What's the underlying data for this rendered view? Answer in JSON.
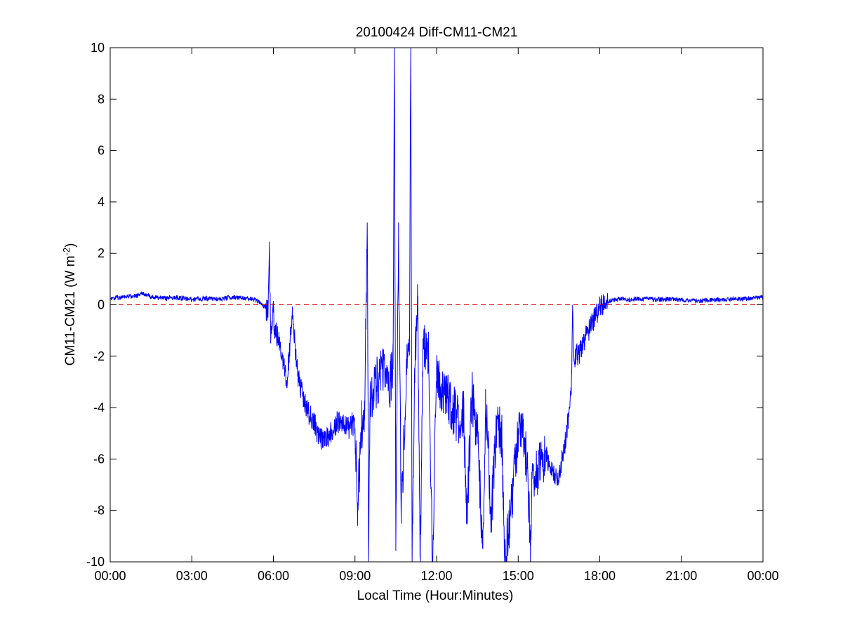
{
  "chart_data": {
    "type": "line",
    "title": "20100424 Diff-CM11-CM21",
    "xlabel": "Local Time (Hour:Minutes)",
    "ylabel_main": "CM11-CM21 (W m",
    "ylabel_sup": "-2",
    "ylabel_close": ")",
    "xlim": [
      0,
      24
    ],
    "ylim": [
      -10,
      10
    ],
    "x_ticks": [
      0,
      3,
      6,
      9,
      12,
      15,
      18,
      21,
      24
    ],
    "x_tick_labels": [
      "00:00",
      "03:00",
      "06:00",
      "09:00",
      "12:00",
      "15:00",
      "18:00",
      "21:00",
      "00:00"
    ],
    "y_ticks": [
      -10,
      -8,
      -6,
      -4,
      -2,
      0,
      2,
      4,
      6,
      8,
      10
    ],
    "y_tick_labels": [
      "-10",
      "-8",
      "-6",
      "-4",
      "-2",
      "0",
      "2",
      "4",
      "6",
      "8",
      "10"
    ],
    "grid": false,
    "reference_line": {
      "y": 0,
      "style": "dashed",
      "color": "#cc0000"
    },
    "series": [
      {
        "color": "#0000ff",
        "x": [
          0,
          0.5,
          1,
          1.2,
          1.5,
          2,
          2.5,
          3,
          3.5,
          4,
          4.5,
          5,
          5.3,
          5.5,
          5.7,
          5.8,
          5.85,
          5.9,
          5.95,
          6.0,
          6.05,
          6.1,
          6.2,
          6.3,
          6.5,
          6.55,
          6.7,
          6.9,
          7.0,
          7.2,
          7.5,
          7.6,
          7.8,
          8.0,
          8.3,
          8.5,
          8.8,
          8.9,
          9.0,
          9.1,
          9.25,
          9.35,
          9.45,
          9.5,
          9.55,
          9.7,
          9.9,
          10.0,
          10.2,
          10.3,
          10.4,
          10.45,
          10.5,
          10.55,
          10.6,
          10.7,
          10.9,
          11.0,
          11.05,
          11.1,
          11.2,
          11.3,
          11.4,
          11.5,
          11.7,
          11.85,
          12.0,
          12.2,
          12.5,
          12.8,
          13.0,
          13.1,
          13.3,
          13.5,
          13.7,
          13.8,
          13.9,
          14.0,
          14.2,
          14.4,
          14.5,
          14.8,
          15.0,
          15.2,
          15.3,
          15.4,
          15.45,
          15.5,
          15.7,
          16.0,
          16.3,
          16.5,
          16.7,
          16.9,
          16.95,
          17.0,
          17.05,
          17.1,
          17.3,
          17.5,
          17.8,
          18.0,
          18.3,
          18.5,
          18.8,
          19.0,
          19.5,
          20.0,
          20.5,
          21.0,
          21.5,
          22.0,
          22.5,
          23.0,
          23.5,
          24.0
        ],
        "y": [
          0.25,
          0.3,
          0.35,
          0.45,
          0.3,
          0.25,
          0.28,
          0.2,
          0.25,
          0.22,
          0.3,
          0.25,
          0.2,
          0.1,
          -0.1,
          -0.3,
          2.3,
          -1.5,
          -0.6,
          -0.3,
          -1.2,
          -1.0,
          -1.5,
          -2.0,
          -3.0,
          -2.3,
          -0.4,
          -2.8,
          -3.2,
          -4.0,
          -4.6,
          -4.9,
          -5.3,
          -5.2,
          -4.6,
          -4.5,
          -4.8,
          -4.6,
          -4.9,
          -7.7,
          -4.7,
          -4.5,
          3.2,
          -10.0,
          -3.8,
          -3.2,
          -2.8,
          -2.5,
          -2.9,
          -3.0,
          -2.5,
          9.7,
          -9.0,
          -3.0,
          2.7,
          -8.2,
          -2.5,
          -1.8,
          10.0,
          -10.0,
          -2.5,
          0.8,
          -10.0,
          -1.5,
          -2.0,
          -10.0,
          -2.5,
          -3.5,
          -3.8,
          -4.5,
          -4.2,
          -8.5,
          -3.5,
          -5.0,
          -9.5,
          -4.0,
          -5.5,
          -8.5,
          -4.8,
          -5.0,
          -10.0,
          -7.5,
          -4.8,
          -5.2,
          -6.0,
          -7.8,
          -9.4,
          -6.5,
          -6.5,
          -5.8,
          -6.5,
          -6.8,
          -5.5,
          -4.0,
          -3.5,
          0.0,
          -2.2,
          -2.0,
          -1.8,
          -1.2,
          -0.5,
          -0.1,
          0.1,
          0.2,
          0.25,
          0.2,
          0.25,
          0.2,
          0.22,
          0.2,
          0.15,
          0.18,
          0.2,
          0.22,
          0.25,
          0.3
        ]
      }
    ]
  }
}
